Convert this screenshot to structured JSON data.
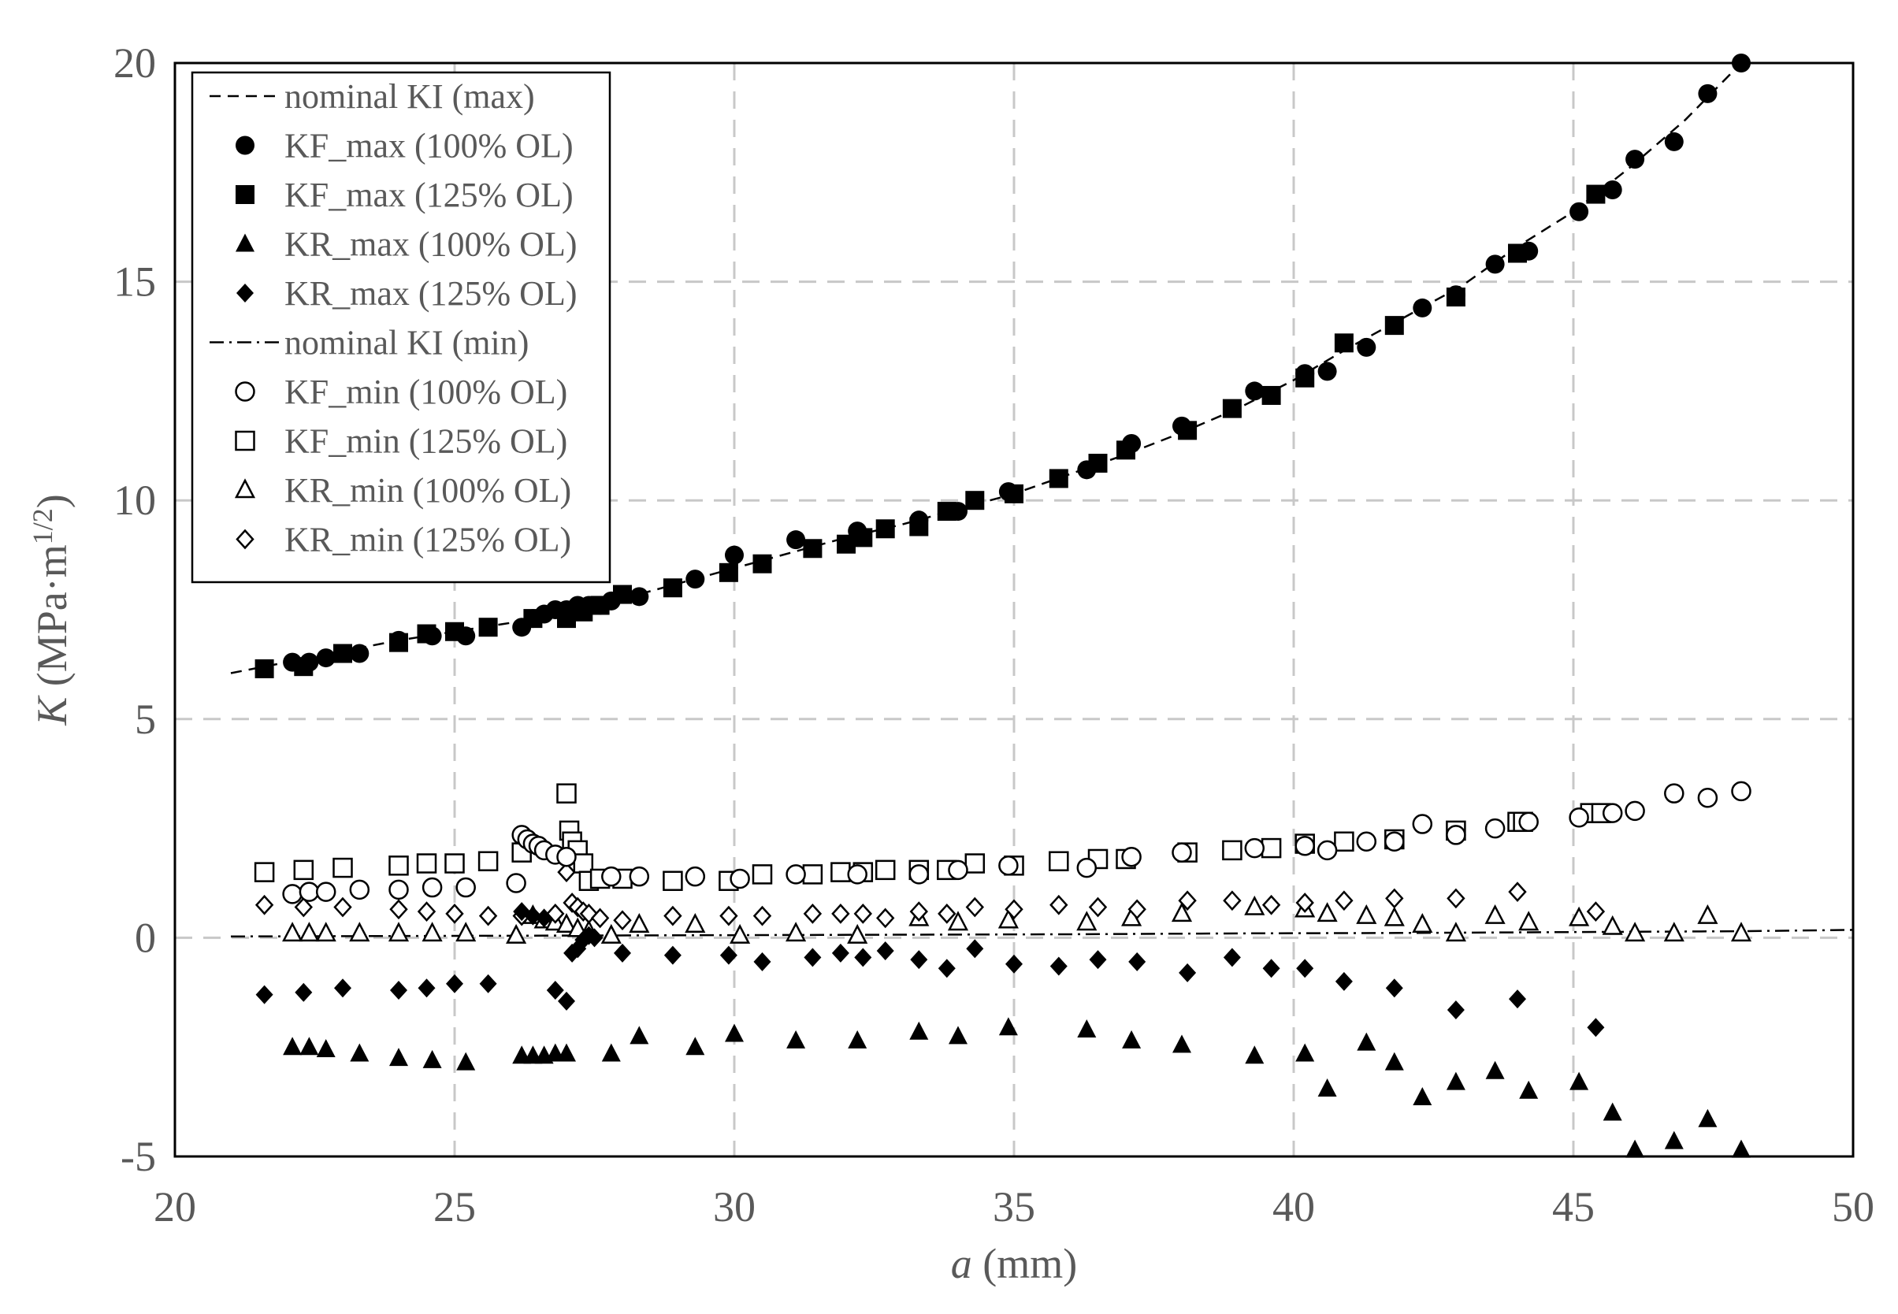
{
  "chart_data": {
    "type": "scatter",
    "title": "",
    "xlabel_italic": "a",
    "xlabel_rest": " (mm)",
    "ylabel_italic": "K",
    "ylabel_rest": " (MPa·m",
    "ylabel_sup": "1/2",
    "ylabel_close": ")",
    "xlim": [
      20,
      50
    ],
    "ylim": [
      -5,
      20
    ],
    "xticks": [
      "20",
      "25",
      "30",
      "35",
      "40",
      "45",
      "50"
    ],
    "yticks": [
      "-5",
      "0",
      "5",
      "10",
      "15",
      "20"
    ],
    "grid": true,
    "legend_position": "top-left",
    "colors": {
      "marker": "#000000",
      "axis": "#000000",
      "grid": "#c8c8c8",
      "text": "#595959"
    },
    "legend": [
      "nominal KI (max)",
      "KF_max (100% OL)",
      "KF_max (125% OL)",
      "KR_max (100% OL)",
      "KR_max (125% OL)",
      "nominal KI (min)",
      "KF_min (100% OL)",
      "KF_min (125% OL)",
      "KR_min (100% OL)",
      "KR_min (125% OL)"
    ],
    "series": [
      {
        "name": "nominal KI (max)",
        "marker": "line-dashed",
        "x": [
          21,
          22,
          23,
          24,
          25,
          26,
          27,
          28,
          29,
          30,
          31,
          32,
          33,
          34,
          35,
          36,
          37,
          38,
          39,
          40,
          41,
          42,
          43,
          44,
          45,
          46,
          47,
          48
        ],
        "y": [
          6.05,
          6.3,
          6.55,
          6.8,
          7.0,
          7.2,
          7.45,
          7.75,
          8.1,
          8.45,
          8.8,
          9.15,
          9.45,
          9.8,
          10.15,
          10.6,
          11.05,
          11.55,
          12.1,
          12.75,
          13.5,
          14.2,
          14.9,
          15.8,
          16.6,
          17.6,
          18.7,
          20.0
        ]
      },
      {
        "name": "KF_max (100% OL)",
        "marker": "circle-filled",
        "x": [
          22.1,
          22.4,
          22.7,
          23.3,
          24.0,
          24.6,
          25.2,
          26.2,
          26.4,
          26.6,
          26.8,
          27.0,
          27.2,
          27.4,
          27.6,
          27.8,
          28.3,
          29.3,
          30.0,
          31.1,
          32.2,
          33.3,
          34.0,
          34.9,
          36.3,
          37.1,
          38.0,
          39.3,
          40.2,
          40.6,
          41.3,
          42.3,
          42.9,
          43.6,
          44.2,
          45.1,
          45.7,
          46.1,
          46.8,
          47.4,
          48.0
        ],
        "y": [
          6.3,
          6.3,
          6.4,
          6.5,
          6.8,
          6.9,
          6.9,
          7.1,
          7.3,
          7.4,
          7.5,
          7.5,
          7.6,
          7.6,
          7.6,
          7.7,
          7.8,
          8.2,
          8.75,
          9.1,
          9.3,
          9.55,
          9.75,
          10.2,
          10.7,
          11.3,
          11.7,
          12.5,
          12.9,
          12.95,
          13.5,
          14.4,
          14.7,
          15.4,
          15.7,
          16.6,
          17.1,
          17.8,
          18.2,
          19.3,
          20.0
        ]
      },
      {
        "name": "KF_max (125% OL)",
        "marker": "square-filled",
        "x": [
          21.6,
          22.3,
          23.0,
          24.0,
          24.5,
          25.0,
          25.6,
          26.4,
          27.0,
          27.3,
          27.6,
          28.0,
          28.9,
          29.9,
          30.5,
          31.4,
          32.0,
          32.3,
          32.7,
          33.3,
          33.8,
          34.3,
          35.0,
          35.8,
          36.5,
          37.0,
          38.1,
          38.9,
          39.6,
          40.2,
          40.9,
          41.8,
          42.9,
          44.0,
          45.4
        ],
        "y": [
          6.15,
          6.2,
          6.5,
          6.75,
          6.95,
          7.0,
          7.1,
          7.3,
          7.3,
          7.45,
          7.6,
          7.85,
          8.0,
          8.35,
          8.55,
          8.9,
          9.0,
          9.15,
          9.35,
          9.4,
          9.75,
          10.0,
          10.15,
          10.5,
          10.85,
          11.15,
          11.6,
          12.1,
          12.4,
          12.8,
          13.6,
          14.0,
          14.65,
          15.65,
          17.0
        ]
      },
      {
        "name": "KR_max (100% OL)",
        "marker": "triangle-filled",
        "x": [
          22.1,
          22.4,
          22.7,
          23.3,
          24.0,
          24.6,
          25.2,
          26.2,
          26.4,
          26.6,
          26.8,
          27.0,
          27.8,
          28.3,
          29.3,
          30.0,
          31.1,
          32.2,
          33.3,
          34.0,
          34.9,
          36.3,
          37.1,
          38.0,
          39.3,
          40.2,
          40.6,
          41.3,
          41.8,
          42.3,
          42.9,
          43.6,
          44.2,
          45.1,
          45.7,
          46.1,
          46.8,
          47.4,
          48.0
        ],
        "y": [
          -2.5,
          -2.5,
          -2.55,
          -2.65,
          -2.75,
          -2.8,
          -2.85,
          -2.7,
          -2.7,
          -2.7,
          -2.65,
          -2.65,
          -2.65,
          -2.25,
          -2.5,
          -2.2,
          -2.35,
          -2.35,
          -2.15,
          -2.25,
          -2.05,
          -2.1,
          -2.35,
          -2.45,
          -2.7,
          -2.65,
          -3.45,
          -2.4,
          -2.85,
          -3.65,
          -3.3,
          -3.05,
          -3.5,
          -3.3,
          -4.0,
          -4.85,
          -4.65,
          -4.15,
          -4.85
        ]
      },
      {
        "name": "KR_max (125% OL)",
        "marker": "diamond-filled",
        "x": [
          21.6,
          22.3,
          23.0,
          24.0,
          24.5,
          25.0,
          25.6,
          26.2,
          26.4,
          26.6,
          26.8,
          27.0,
          27.1,
          27.2,
          27.3,
          27.4,
          27.5,
          28.0,
          28.9,
          29.9,
          30.5,
          31.4,
          31.9,
          32.3,
          32.7,
          33.3,
          33.8,
          34.3,
          35.0,
          35.8,
          36.5,
          37.2,
          38.1,
          38.9,
          39.6,
          40.2,
          40.9,
          41.8,
          42.9,
          44.0,
          45.4
        ],
        "y": [
          -1.3,
          -1.25,
          -1.15,
          -1.2,
          -1.15,
          -1.05,
          -1.05,
          0.6,
          0.5,
          0.45,
          -1.2,
          -1.45,
          -0.35,
          -0.25,
          -0.05,
          0.05,
          0.0,
          -0.35,
          -0.4,
          -0.4,
          -0.55,
          -0.45,
          -0.35,
          -0.45,
          -0.3,
          -0.5,
          -0.7,
          -0.25,
          -0.6,
          -0.65,
          -0.5,
          -0.55,
          -0.8,
          -0.45,
          -0.7,
          -0.7,
          -1.0,
          -1.15,
          -1.65,
          -1.4,
          -2.05
        ]
      },
      {
        "name": "nominal KI (min)",
        "marker": "line-dashdot",
        "x": [
          21,
          24,
          27,
          30,
          33,
          36,
          39,
          42,
          45,
          48,
          50
        ],
        "y": [
          0.03,
          0.04,
          0.05,
          0.06,
          0.07,
          0.08,
          0.1,
          0.11,
          0.13,
          0.15,
          0.18
        ]
      },
      {
        "name": "KF_min (100% OL)",
        "marker": "circle-open",
        "x": [
          22.1,
          22.4,
          22.7,
          23.3,
          24.0,
          24.6,
          25.2,
          26.1,
          26.2,
          26.3,
          26.4,
          26.5,
          26.6,
          26.8,
          27.0,
          27.8,
          28.3,
          29.3,
          30.1,
          31.1,
          32.2,
          33.3,
          34.0,
          34.9,
          36.3,
          37.1,
          38.0,
          39.3,
          40.2,
          40.6,
          41.3,
          41.8,
          42.3,
          42.9,
          43.6,
          44.2,
          45.1,
          45.7,
          46.1,
          46.8,
          47.4,
          48.0
        ],
        "y": [
          1.0,
          1.05,
          1.05,
          1.1,
          1.1,
          1.15,
          1.15,
          1.25,
          2.35,
          2.25,
          2.15,
          2.1,
          2.0,
          1.9,
          1.85,
          1.4,
          1.4,
          1.4,
          1.35,
          1.45,
          1.45,
          1.45,
          1.55,
          1.65,
          1.6,
          1.85,
          1.95,
          2.05,
          2.1,
          2.0,
          2.2,
          2.2,
          2.6,
          2.35,
          2.5,
          2.65,
          2.75,
          2.85,
          2.9,
          3.3,
          3.2,
          3.35
        ]
      },
      {
        "name": "KF_min (125% OL)",
        "marker": "square-open",
        "x": [
          21.6,
          22.3,
          23.0,
          24.0,
          24.5,
          25.0,
          25.6,
          26.2,
          27.0,
          27.05,
          27.1,
          27.2,
          27.3,
          27.4,
          27.6,
          28.0,
          28.9,
          29.9,
          30.5,
          31.4,
          31.9,
          32.3,
          32.7,
          33.3,
          33.8,
          34.3,
          35.0,
          35.8,
          36.5,
          37.0,
          38.1,
          38.9,
          39.6,
          40.2,
          40.9,
          41.8,
          42.9,
          44.0,
          44.1,
          45.3,
          45.5
        ],
        "y": [
          1.5,
          1.55,
          1.6,
          1.65,
          1.7,
          1.7,
          1.75,
          1.95,
          3.3,
          2.45,
          2.2,
          2.0,
          1.7,
          1.3,
          1.35,
          1.35,
          1.3,
          1.3,
          1.45,
          1.45,
          1.5,
          1.5,
          1.55,
          1.55,
          1.55,
          1.7,
          1.65,
          1.75,
          1.8,
          1.8,
          1.95,
          2.0,
          2.05,
          2.15,
          2.2,
          2.25,
          2.45,
          2.65,
          2.65,
          2.85,
          2.85
        ]
      },
      {
        "name": "KR_min (100% OL)",
        "marker": "triangle-open",
        "x": [
          22.1,
          22.4,
          22.7,
          23.3,
          24.0,
          24.6,
          25.2,
          26.1,
          26.4,
          26.6,
          26.8,
          27.0,
          27.2,
          27.4,
          27.8,
          28.3,
          29.3,
          30.1,
          31.1,
          32.2,
          33.3,
          34.0,
          34.9,
          36.3,
          37.1,
          38.0,
          39.3,
          40.2,
          40.6,
          41.3,
          41.8,
          42.3,
          42.9,
          43.6,
          44.2,
          45.1,
          45.7,
          46.1,
          46.8,
          47.4,
          48.0
        ],
        "y": [
          0.1,
          0.1,
          0.1,
          0.1,
          0.1,
          0.1,
          0.1,
          0.05,
          0.5,
          0.4,
          0.35,
          0.3,
          0.2,
          0.15,
          0.05,
          0.3,
          0.3,
          0.05,
          0.1,
          0.05,
          0.45,
          0.35,
          0.4,
          0.35,
          0.45,
          0.55,
          0.7,
          0.65,
          0.55,
          0.5,
          0.45,
          0.3,
          0.1,
          0.5,
          0.35,
          0.45,
          0.25,
          0.1,
          0.1,
          0.5,
          0.1
        ]
      },
      {
        "name": "KR_min (125% OL)",
        "marker": "diamond-open",
        "x": [
          21.6,
          22.3,
          23.0,
          24.0,
          24.5,
          25.0,
          25.6,
          26.2,
          26.8,
          27.0,
          27.1,
          27.2,
          27.3,
          27.4,
          27.6,
          28.0,
          28.9,
          29.9,
          30.5,
          31.4,
          31.9,
          32.3,
          32.7,
          33.3,
          33.8,
          34.3,
          35.0,
          35.8,
          36.5,
          37.2,
          38.1,
          38.9,
          39.6,
          40.2,
          40.9,
          41.8,
          42.9,
          44.0,
          45.4
        ],
        "y": [
          0.75,
          0.7,
          0.7,
          0.65,
          0.6,
          0.55,
          0.5,
          0.5,
          0.55,
          1.5,
          0.8,
          0.7,
          0.6,
          0.55,
          0.45,
          0.4,
          0.5,
          0.5,
          0.5,
          0.55,
          0.55,
          0.55,
          0.45,
          0.6,
          0.55,
          0.7,
          0.65,
          0.75,
          0.7,
          0.65,
          0.85,
          0.85,
          0.75,
          0.8,
          0.85,
          0.9,
          0.9,
          1.05,
          0.6
        ]
      }
    ]
  }
}
